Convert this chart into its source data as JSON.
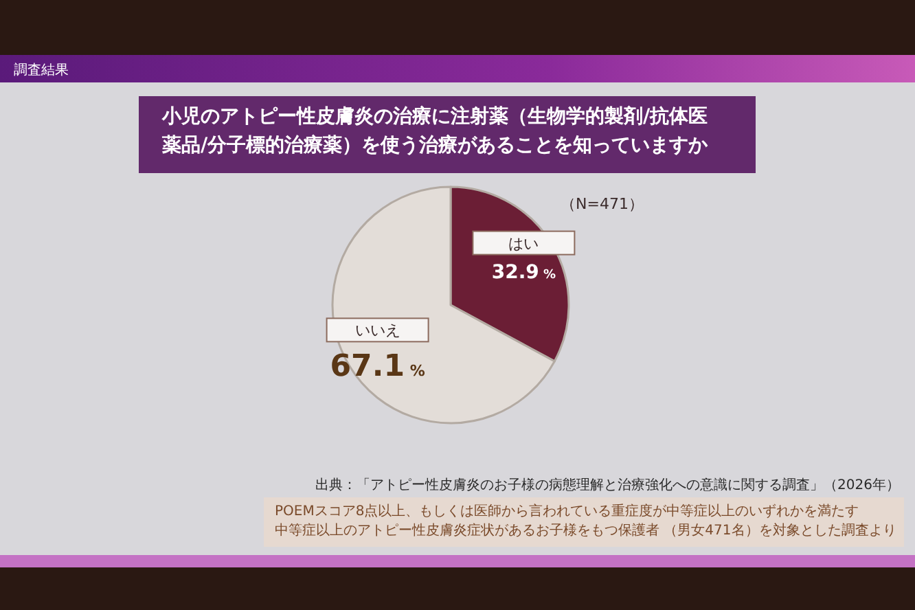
{
  "chart_data": {
    "type": "pie",
    "title": "小児のアトピー性皮膚炎の治療に注射薬（生物学的製剤/抗体医薬品/分子標的治療薬）を使う治療があることを知っていますか",
    "categories": [
      "はい",
      "いいえ"
    ],
    "values": [
      32.9,
      67.1
    ],
    "colors": [
      "#6b1e35",
      "#e3ddd8"
    ],
    "value_labels": [
      "32.9 %",
      "67.1 %"
    ],
    "annotations": [
      "調査結果",
      "（N=471）",
      "出典：「アトピー性皮膚炎のお子様の病態理解と治療強化への意識に関する調査」（2026年）",
      "POEMスコア8点以上、もしくは医師から言われている重症度が中等症以上のいずれかを満たす",
      "中等症以上のアトピー性皮膚炎症状があるお子様をもつ保護者 （男女471名）を対象とした調査より"
    ]
  }
}
